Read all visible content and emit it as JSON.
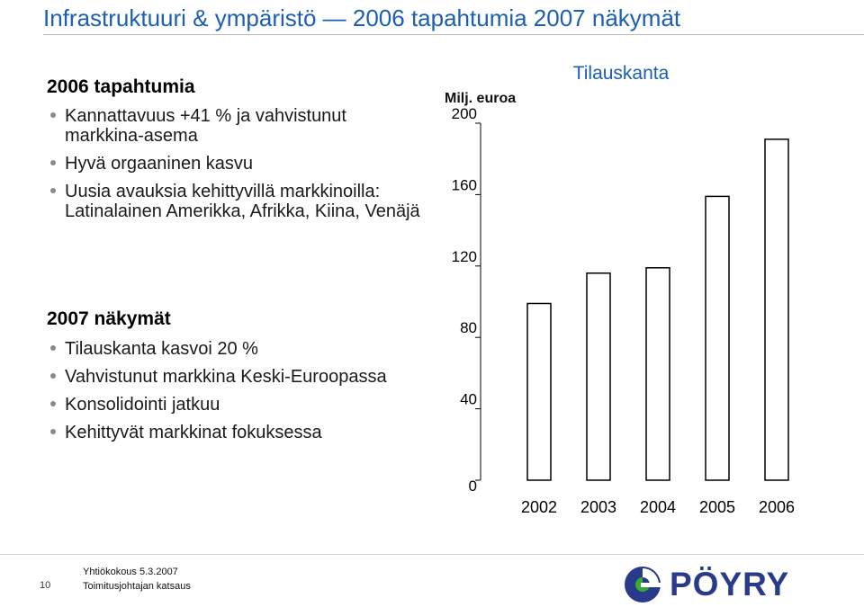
{
  "slide": {
    "title": "Infrastruktuuri & ympäristö — 2006 tapahtumia 2007 näkymät"
  },
  "section_2006": {
    "heading": "2006 tapahtumia",
    "bullets": [
      "Kannattavuus +41 % ja vahvistunut markkina-asema",
      "Hyvä orgaaninen kasvu",
      "Uusia avauksia kehittyvillä markkinoilla: Latinalainen Amerikka, Afrikka, Kiina, Venäjä"
    ]
  },
  "section_2007": {
    "heading": "2007 näkymät",
    "bullets": [
      "Tilauskanta kasvoi 20 %",
      "Vahvistunut markkina Keski-Euroopassa",
      "Konsolidointi jatkuu",
      "Kehittyvät markkinat fokuksessa"
    ]
  },
  "chart_data": {
    "type": "bar",
    "title": "Tilauskanta",
    "ylabel": "Milj. euroa",
    "xlabel": "",
    "categories": [
      "2002",
      "2003",
      "2004",
      "2005",
      "2006"
    ],
    "values": [
      99,
      116,
      119,
      159,
      191
    ],
    "ylim": [
      0,
      200
    ],
    "yticks": [
      0,
      40,
      80,
      120,
      160,
      200
    ],
    "grid": false,
    "legend": "none",
    "bar_color": "#000000",
    "bar_fill": "#ffffff"
  },
  "footer": {
    "page_number": "10",
    "date_line": "Yhtiökokous 5.3.2007",
    "subtitle_line": "Toimitusjohtajan katsaus",
    "logo_text": "PÖYRY",
    "logo_icon": "poyry-logo-icon"
  },
  "colors": {
    "title": "#1a5fb4",
    "logo_blue": "#2a3a8a",
    "logo_green": "#3aa935",
    "bullet": "#8a8a8a"
  }
}
